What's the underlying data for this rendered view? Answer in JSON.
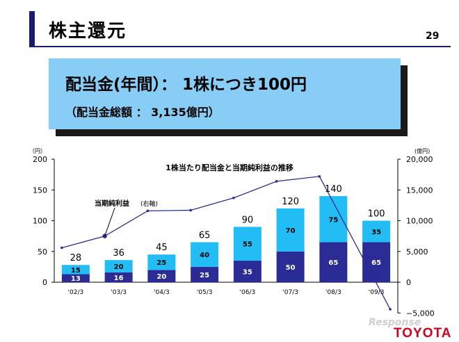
{
  "header": {
    "title": "株主還元",
    "page_number": "29"
  },
  "callout": {
    "line1": "配当金(年間）： 1株につき100円",
    "line2": "（配当金総額 ： 3,135億円）"
  },
  "logo": {
    "text": "TOYOTA",
    "color": "#d0021b"
  },
  "watermark": {
    "text": "Response"
  },
  "colors": {
    "interim": "#2b2b95",
    "year_end": "#22bdf5",
    "line": "#2b2b95",
    "callout_bg": "#87cdf5",
    "title_bar": "#1a1a6e"
  },
  "chart_data": {
    "type": "bar",
    "title": "1株当たり配当金と当期純利益の推移",
    "categories": [
      "'02/3",
      "'03/3",
      "'04/3",
      "'05/3",
      "'06/3",
      "'07/3",
      "'08/3",
      "'09/3"
    ],
    "series": [
      {
        "values": [
          13,
          16,
          20,
          25,
          35,
          50,
          65,
          65
        ]
      },
      {
        "values": [
          15,
          20,
          25,
          40,
          55,
          70,
          75,
          35
        ]
      }
    ],
    "totals": [
      28,
      36,
      45,
      65,
      90,
      120,
      140,
      100
    ],
    "line_series": {
      "name": "当期純利益",
      "axis_label": "(右軸)",
      "values": [
        5600,
        7500,
        11600,
        11700,
        13700,
        16400,
        17200,
        -4400
      ]
    },
    "left_axis": {
      "unit": "（円）",
      "ylim": [
        0,
        200
      ],
      "ticks": [
        "200",
        "150",
        "100",
        "50",
        "0"
      ]
    },
    "right_axis": {
      "unit": "(億円)",
      "ylim": [
        -5000,
        20000
      ],
      "ticks": [
        "20,000",
        "15,000",
        "10,000",
        "5,000",
        "0",
        "−5,000"
      ]
    },
    "grid": false
  }
}
